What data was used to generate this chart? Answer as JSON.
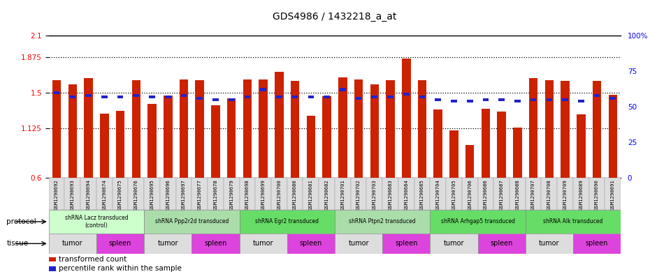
{
  "title": "GDS4986 / 1432218_a_at",
  "samples": [
    "GSM1290692",
    "GSM1290693",
    "GSM1290694",
    "GSM1290674",
    "GSM1290675",
    "GSM1290676",
    "GSM1290695",
    "GSM1290696",
    "GSM1290697",
    "GSM1290677",
    "GSM1290678",
    "GSM1290679",
    "GSM1290698",
    "GSM1290699",
    "GSM1290700",
    "GSM1290680",
    "GSM1290681",
    "GSM1290682",
    "GSM1290701",
    "GSM1290702",
    "GSM1290703",
    "GSM1290683",
    "GSM1290684",
    "GSM1290685",
    "GSM1290704",
    "GSM1290705",
    "GSM1290706",
    "GSM1290686",
    "GSM1290687",
    "GSM1290688",
    "GSM1290707",
    "GSM1290708",
    "GSM1290709",
    "GSM1290689",
    "GSM1290690",
    "GSM1290691"
  ],
  "bar_values": [
    1.63,
    1.59,
    1.65,
    1.28,
    1.31,
    1.63,
    1.38,
    1.47,
    1.64,
    1.63,
    1.37,
    1.44,
    1.64,
    1.64,
    1.72,
    1.62,
    1.26,
    1.46,
    1.66,
    1.64,
    1.59,
    1.63,
    1.86,
    1.63,
    1.32,
    1.1,
    0.95,
    1.33,
    1.3,
    1.13,
    1.65,
    1.63,
    1.62,
    1.27,
    1.62,
    1.48
  ],
  "percentile_values": [
    60,
    57,
    58,
    57,
    57,
    58,
    57,
    57,
    58,
    56,
    55,
    55,
    57,
    62,
    57,
    57,
    57,
    57,
    62,
    56,
    57,
    57,
    59,
    57,
    55,
    54,
    54,
    55,
    55,
    54,
    55,
    55,
    55,
    54,
    58,
    56
  ],
  "ylim": [
    0.6,
    2.1
  ],
  "y_left_ticks": [
    0.6,
    1.125,
    1.5,
    1.875,
    2.1
  ],
  "y_left_ticklabels": [
    "0.6",
    "1.125",
    "1.5",
    "1.875",
    "2.1"
  ],
  "y_right_ticks": [
    0,
    25,
    50,
    75,
    100
  ],
  "y_right_ticklabels": [
    "0",
    "25",
    "50",
    "75",
    "100%"
  ],
  "dotted_lines": [
    1.125,
    1.5,
    1.875
  ],
  "bar_color": "#cc2200",
  "percentile_color": "#2222cc",
  "bar_baseline": 0.6,
  "protocols": [
    {
      "label": "shRNA Lacz transduced\n(control)",
      "start": 0,
      "end": 6,
      "color": "#ccffcc"
    },
    {
      "label": "shRNA Ppp2r2d transduced",
      "start": 6,
      "end": 12,
      "color": "#aaddaa"
    },
    {
      "label": "shRNA Egr2 transduced",
      "start": 12,
      "end": 18,
      "color": "#66dd66"
    },
    {
      "label": "shRNA Ptpn2 transduced",
      "start": 18,
      "end": 24,
      "color": "#aaddaa"
    },
    {
      "label": "shRNA Arhgap5 transduced",
      "start": 24,
      "end": 30,
      "color": "#66dd66"
    },
    {
      "label": "shRNA Alk transduced",
      "start": 30,
      "end": 36,
      "color": "#66dd66"
    }
  ],
  "tissues": [
    {
      "label": "tumor",
      "start": 0,
      "end": 3,
      "color": "#dddddd"
    },
    {
      "label": "spleen",
      "start": 3,
      "end": 6,
      "color": "#dd44dd"
    },
    {
      "label": "tumor",
      "start": 6,
      "end": 9,
      "color": "#dddddd"
    },
    {
      "label": "spleen",
      "start": 9,
      "end": 12,
      "color": "#dd44dd"
    },
    {
      "label": "tumor",
      "start": 12,
      "end": 15,
      "color": "#dddddd"
    },
    {
      "label": "spleen",
      "start": 15,
      "end": 18,
      "color": "#dd44dd"
    },
    {
      "label": "tumor",
      "start": 18,
      "end": 21,
      "color": "#dddddd"
    },
    {
      "label": "spleen",
      "start": 21,
      "end": 24,
      "color": "#dd44dd"
    },
    {
      "label": "tumor",
      "start": 24,
      "end": 27,
      "color": "#dddddd"
    },
    {
      "label": "spleen",
      "start": 27,
      "end": 30,
      "color": "#dd44dd"
    },
    {
      "label": "tumor",
      "start": 30,
      "end": 33,
      "color": "#dddddd"
    },
    {
      "label": "spleen",
      "start": 33,
      "end": 36,
      "color": "#dd44dd"
    }
  ],
  "legend_bar_label": "transformed count",
  "legend_percentile_label": "percentile rank within the sample",
  "background_color": "#ffffff",
  "plot_bg_color": "#ffffff"
}
